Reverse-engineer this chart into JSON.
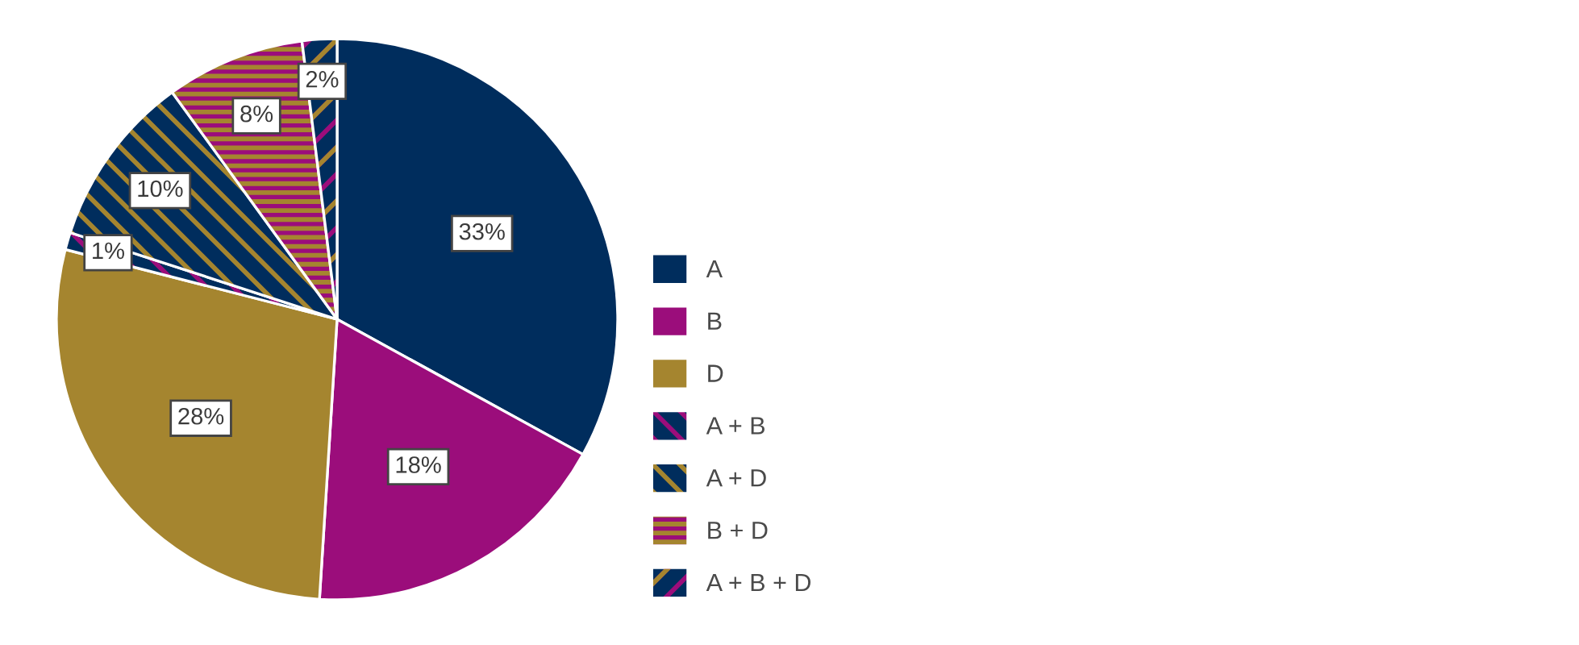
{
  "chart_data": {
    "type": "pie",
    "categories": [
      "A",
      "B",
      "D",
      "A + B",
      "A + D",
      "B + D",
      "A + B + D"
    ],
    "values": [
      33,
      18,
      28,
      1,
      10,
      8,
      2
    ],
    "colors": [
      "#002d5d",
      "#9b0d7b",
      "#a5852f",
      [
        "#002d5d",
        "#9b0d7b"
      ],
      [
        "#002d5d",
        "#a5852f"
      ],
      [
        "#9b0d7b",
        "#a5852f"
      ],
      [
        "#002d5d",
        "#9b0d7b",
        "#a5852f"
      ]
    ],
    "value_labels": [
      "33%",
      "18%",
      "28%",
      "1%",
      "10%",
      "8%",
      "2%"
    ],
    "legend": "right"
  }
}
